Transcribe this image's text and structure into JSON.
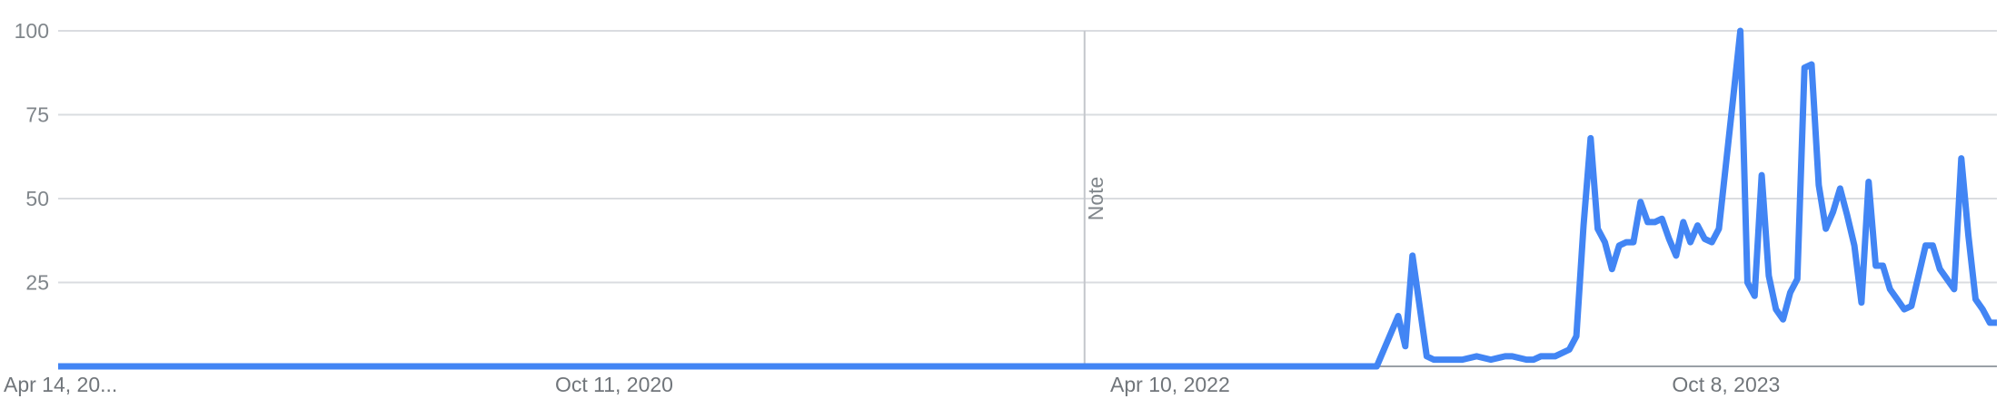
{
  "chart_data": {
    "type": "line",
    "title": "",
    "xlabel": "",
    "ylabel": "",
    "ylim": [
      0,
      100
    ],
    "yticks": [
      25,
      50,
      75,
      100
    ],
    "ytick_labels": [
      "25",
      "50",
      "75",
      "100"
    ],
    "xticks": [
      "2019-04-14",
      "2020-10-11",
      "2022-04-10",
      "2023-10-08"
    ],
    "xtick_labels": [
      "Apr 14, 20...",
      "Oct 11, 2020",
      "Apr 10, 2022",
      "Oct 8, 2023"
    ],
    "grid": true,
    "color": "#4285f4",
    "annotations": [
      {
        "x": "2022-01-16",
        "label": "Note"
      }
    ],
    "series": [
      {
        "name": "",
        "points": [
          [
            "2019-04-14",
            0
          ],
          [
            "2022-10-30",
            0
          ],
          [
            "2022-11-20",
            15
          ],
          [
            "2022-11-27",
            6
          ],
          [
            "2022-12-04",
            33
          ],
          [
            "2022-12-18",
            3
          ],
          [
            "2022-12-25",
            2
          ],
          [
            "2023-01-22",
            2
          ],
          [
            "2023-02-05",
            3
          ],
          [
            "2023-02-19",
            2
          ],
          [
            "2023-03-05",
            3
          ],
          [
            "2023-03-12",
            3
          ],
          [
            "2023-03-26",
            2
          ],
          [
            "2023-04-02",
            2
          ],
          [
            "2023-04-09",
            3
          ],
          [
            "2023-04-23",
            3
          ],
          [
            "2023-05-07",
            5
          ],
          [
            "2023-05-14",
            9
          ],
          [
            "2023-05-21",
            42
          ],
          [
            "2023-05-28",
            68
          ],
          [
            "2023-06-04",
            41
          ],
          [
            "2023-06-11",
            37
          ],
          [
            "2023-06-18",
            29
          ],
          [
            "2023-06-25",
            36
          ],
          [
            "2023-07-02",
            37
          ],
          [
            "2023-07-09",
            37
          ],
          [
            "2023-07-16",
            49
          ],
          [
            "2023-07-23",
            43
          ],
          [
            "2023-07-30",
            43
          ],
          [
            "2023-08-06",
            44
          ],
          [
            "2023-08-13",
            38
          ],
          [
            "2023-08-20",
            33
          ],
          [
            "2023-08-27",
            43
          ],
          [
            "2023-09-03",
            37
          ],
          [
            "2023-09-10",
            42
          ],
          [
            "2023-09-17",
            38
          ],
          [
            "2023-09-24",
            37
          ],
          [
            "2023-10-01",
            41
          ],
          [
            "2023-10-15",
            80
          ],
          [
            "2023-10-22",
            100
          ],
          [
            "2023-10-29",
            25
          ],
          [
            "2023-11-05",
            21
          ],
          [
            "2023-11-12",
            57
          ],
          [
            "2023-11-19",
            27
          ],
          [
            "2023-11-26",
            17
          ],
          [
            "2023-12-03",
            14
          ],
          [
            "2023-12-10",
            22
          ],
          [
            "2023-12-17",
            26
          ],
          [
            "2023-12-24",
            89
          ],
          [
            "2023-12-31",
            90
          ],
          [
            "2024-01-07",
            54
          ],
          [
            "2024-01-14",
            41
          ],
          [
            "2024-01-21",
            46
          ],
          [
            "2024-01-28",
            53
          ],
          [
            "2024-02-04",
            45
          ],
          [
            "2024-02-11",
            36
          ],
          [
            "2024-02-18",
            19
          ],
          [
            "2024-02-25",
            55
          ],
          [
            "2024-03-03",
            30
          ],
          [
            "2024-03-10",
            30
          ],
          [
            "2024-03-17",
            23
          ],
          [
            "2024-03-24",
            20
          ],
          [
            "2024-03-31",
            17
          ],
          [
            "2024-04-07",
            18
          ],
          [
            "2024-04-21",
            36
          ],
          [
            "2024-04-28",
            36
          ],
          [
            "2024-05-05",
            29
          ],
          [
            "2024-05-12",
            26
          ],
          [
            "2024-05-19",
            23
          ],
          [
            "2024-05-26",
            62
          ],
          [
            "2024-06-02",
            39
          ],
          [
            "2024-06-09",
            20
          ],
          [
            "2024-06-16",
            17
          ],
          [
            "2024-06-23",
            13
          ],
          [
            "2024-06-30",
            13
          ]
        ]
      }
    ]
  }
}
